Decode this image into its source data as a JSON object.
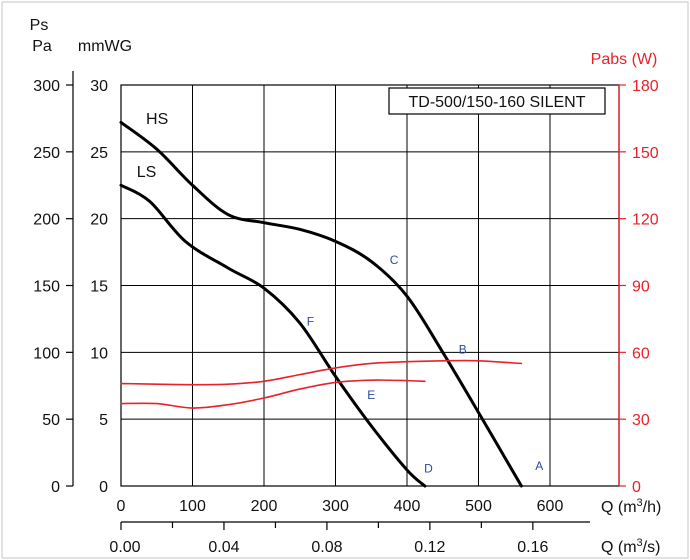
{
  "colors": {
    "frame": "#d8d8d8",
    "grid": "#000000",
    "pressure_curve": "#000000",
    "power_curve": "#e8222a",
    "point_label": "#2c4aa0"
  },
  "chart_data": {
    "type": "line",
    "title": "TD-500/150-160 SILENT",
    "axes": {
      "x_bottom": {
        "label": "Q (m³/h)",
        "label_text": "Q (m",
        "label_unit": "/h)",
        "range": [
          0,
          600
        ],
        "ticks": [
          "0",
          "100",
          "200",
          "300",
          "400",
          "500",
          "600"
        ]
      },
      "x_secondary": {
        "label": "Q (m³/s)",
        "label_text": "Q (m",
        "label_unit": "/s)",
        "range": [
          0,
          0.167
        ],
        "ticks": [
          0,
          0.04,
          0.08,
          0.12,
          0.16
        ],
        "tick_labels": [
          "0.00",
          "0.04",
          "0.08",
          "0.12",
          "0.16"
        ]
      },
      "y_left_pa": {
        "label": "Ps Pa",
        "label_top": "Ps",
        "label_bottom": "Pa",
        "range": [
          0,
          300
        ],
        "ticks": [
          "0",
          "50",
          "100",
          "150",
          "200",
          "250",
          "300"
        ]
      },
      "y_left_mmwg": {
        "label": "mmWG",
        "range": [
          0,
          30
        ],
        "ticks": [
          "0",
          "5",
          "10",
          "15",
          "20",
          "25",
          "30"
        ]
      },
      "y_right": {
        "label": "Pabs (W)",
        "range": [
          0,
          180
        ],
        "ticks": [
          "0",
          "30",
          "60",
          "90",
          "120",
          "150",
          "180"
        ]
      }
    },
    "grid": true,
    "series": [
      {
        "name": "HS",
        "axis": "pressure",
        "x": [
          0,
          50,
          100,
          150,
          200,
          250,
          300,
          350,
          400,
          450,
          500,
          560
        ],
        "y": [
          272,
          252,
          225,
          203,
          197,
          192,
          183,
          168,
          142,
          100,
          55,
          0
        ]
      },
      {
        "name": "LS",
        "axis": "pressure",
        "x": [
          0,
          40,
          90,
          150,
          200,
          250,
          300,
          350,
          400,
          425
        ],
        "y": [
          225,
          213,
          183,
          163,
          148,
          122,
          82,
          45,
          12,
          0
        ]
      },
      {
        "name": "",
        "axis": "power",
        "x": [
          0,
          50,
          100,
          150,
          200,
          250,
          300,
          350,
          400,
          450,
          500,
          560
        ],
        "y": [
          46,
          45.7,
          45.5,
          45.7,
          47,
          50,
          53,
          55,
          55.8,
          56.2,
          56.2,
          55
        ]
      },
      {
        "name": "",
        "axis": "power",
        "x": [
          0,
          50,
          100,
          150,
          200,
          250,
          300,
          350,
          400,
          425
        ],
        "y": [
          37,
          37,
          35,
          36.5,
          39.5,
          43.5,
          46.5,
          47.5,
          47.3,
          47
        ]
      }
    ],
    "point_labels": [
      {
        "label": "A",
        "x": 585,
        "y": 12
      },
      {
        "label": "B",
        "x": 478,
        "y": 99
      },
      {
        "label": "C",
        "x": 382,
        "y": 166
      },
      {
        "label": "D",
        "x": 430,
        "y": 10
      },
      {
        "label": "E",
        "x": 350,
        "y": 65
      },
      {
        "label": "F",
        "x": 265,
        "y": 120
      }
    ],
    "curve_labels": [
      {
        "label": "HS",
        "x": 35,
        "y": 271
      },
      {
        "label": "LS",
        "x": 22,
        "y": 231
      }
    ]
  }
}
